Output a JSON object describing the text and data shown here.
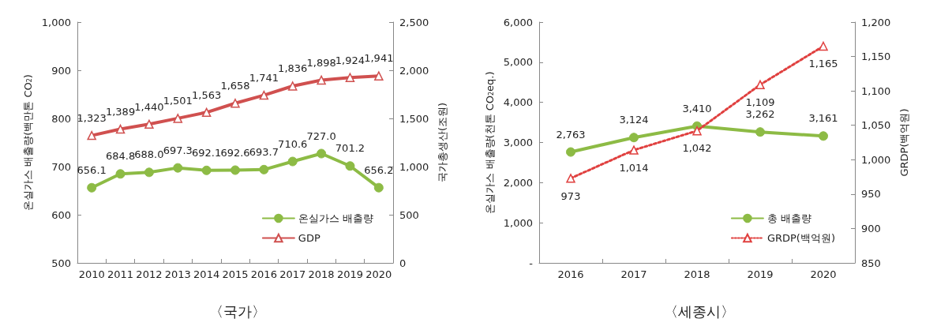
{
  "chart_data": [
    {
      "type": "line",
      "title": "〈국가〉",
      "categories": [
        "2010",
        "2011",
        "2012",
        "2013",
        "2014",
        "2015",
        "2016",
        "2017",
        "2018",
        "2019",
        "2020"
      ],
      "ylabel": "온실가스 배출량(백만톤 CO$_{2}$)",
      "y2label": "국가총생산(조원)",
      "ylim": [
        500,
        1000
      ],
      "yticks": [
        500,
        600,
        700,
        800,
        900,
        {
          "value": 1000,
          "label": "1,000"
        }
      ],
      "y2lim": [
        0,
        2500
      ],
      "y2ticks": [
        0,
        500,
        {
          "value": 1000,
          "label": "1,000"
        },
        {
          "value": 1500,
          "label": "1,500"
        },
        {
          "value": 2000,
          "label": "2,000"
        },
        {
          "value": 2500,
          "label": "2,500"
        }
      ],
      "grid": false,
      "legend": "bottom right",
      "series": [
        {
          "name": "온실가스 배출량",
          "color": "#8dbb45",
          "marker": "circle",
          "line_style": "solid",
          "values": [
            656.1,
            684.8,
            688.0,
            697.3,
            692.1,
            692.6,
            693.7,
            710.6,
            727.0,
            701.2,
            656.2
          ],
          "value_labels": [
            "656.1",
            "684.8",
            "688.0",
            "697.3",
            "692.1",
            "692.6",
            "693.7",
            "710.6",
            "727.0",
            "701.2",
            "656.2"
          ]
        },
        {
          "name": "GDP",
          "color": "#d0504f",
          "marker": "triangle",
          "line_style": "solid",
          "axis": "y2",
          "values": [
            1323,
            1389,
            1440,
            1501,
            1563,
            1658,
            1741,
            1836,
            1898,
            1924,
            1941
          ],
          "value_labels": [
            "1,323",
            "1,389",
            "1,440",
            "1,501",
            "1,563",
            "1,658",
            "1,741",
            "1,836",
            "1,898",
            "1,924",
            "1,941"
          ]
        }
      ]
    },
    {
      "type": "line",
      "title": "〈세종시〉",
      "categories": [
        "2016",
        "2017",
        "2018",
        "2019",
        "2020"
      ],
      "ylabel": "온실가스 배출량(천톤 CO$_{2}$eq.)",
      "y2label": "GRDP(백억원)",
      "ylim": [
        0,
        6000
      ],
      "yticks": [
        {
          "value": 0,
          "label": "-"
        },
        {
          "value": 1000,
          "label": "1,000"
        },
        {
          "value": 2000,
          "label": "2,000"
        },
        {
          "value": 3000,
          "label": "3,000"
        },
        {
          "value": 4000,
          "label": "4,000"
        },
        {
          "value": 5000,
          "label": "5,000"
        },
        {
          "value": 6000,
          "label": "6,000"
        }
      ],
      "y2lim": [
        850,
        1200
      ],
      "y2ticks": [
        850,
        900,
        950,
        {
          "value": 1000,
          "label": "1,000"
        },
        {
          "value": 1050,
          "label": "1,050"
        },
        {
          "value": 1100,
          "label": "1,100"
        },
        {
          "value": 1150,
          "label": "1,150"
        },
        {
          "value": 1200,
          "label": "1,200"
        }
      ],
      "grid": false,
      "legend": "bottom right",
      "series": [
        {
          "name": "총 배출량",
          "color": "#8dbb45",
          "marker": "circle",
          "line_style": "solid",
          "values": [
            2763,
            3124,
            3410,
            3262,
            3161
          ],
          "value_labels": [
            "2,763",
            "3,124",
            "3,410",
            "3,262",
            "3,161"
          ]
        },
        {
          "name": "GRDP(백억원)",
          "color": "#e0403f",
          "marker": "triangle",
          "line_style": "dotted",
          "axis": "y2",
          "values": [
            973,
            1014,
            1042,
            1109,
            1165
          ],
          "value_labels": [
            "973",
            "1,014",
            "1,042",
            "1,109",
            "1,165"
          ]
        }
      ]
    }
  ]
}
